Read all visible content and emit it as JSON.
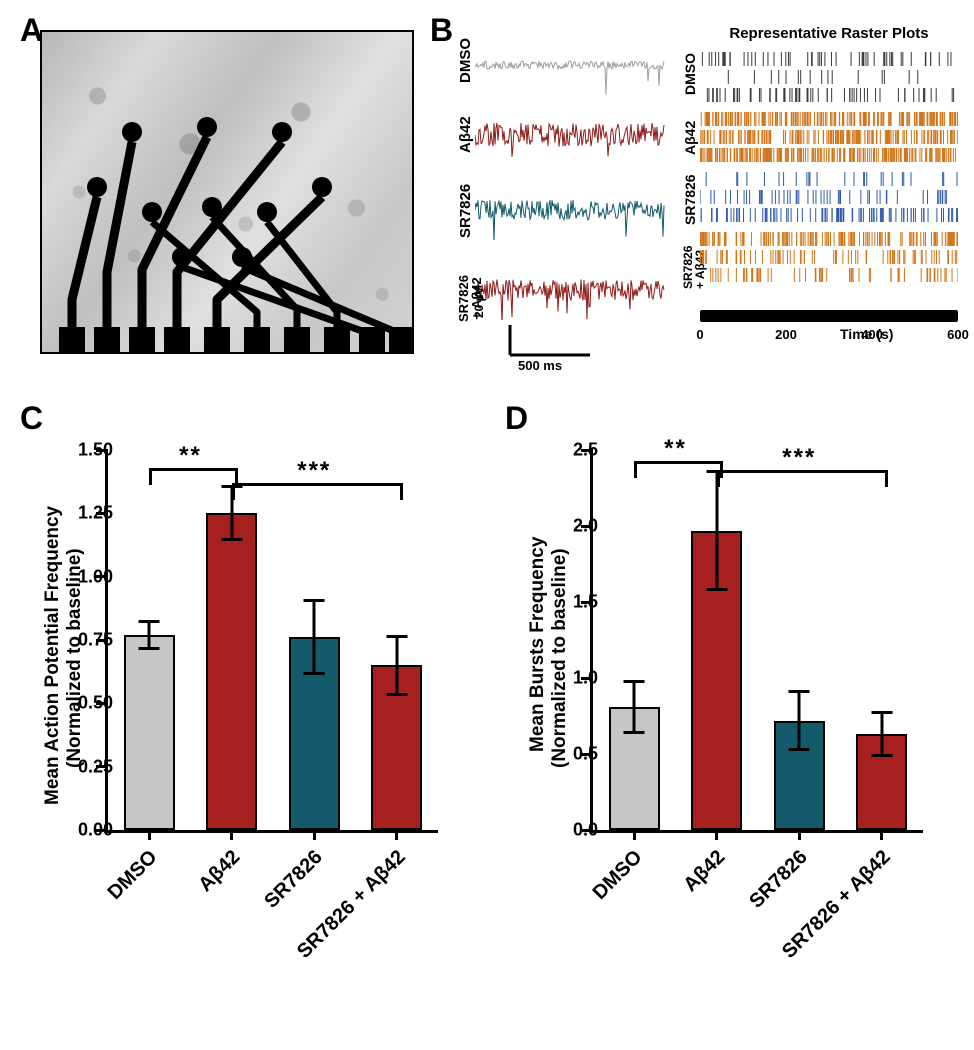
{
  "panelLabels": {
    "A": "A",
    "B": "B",
    "C": "C",
    "D": "D"
  },
  "colors": {
    "dmso": "#c6c6c6",
    "ab42": "#a6201f",
    "sr": "#135b6b",
    "sr_ab": "#a6201f",
    "raster_dmso": "#3a3a3a",
    "raster_ab42": "#d1751b",
    "raster_sr": "#2e5aa8",
    "raster_sr_ab": "#d1751b",
    "trace_dmso": "#9e9e9e",
    "trace_ab42": "#8f1a1a",
    "trace_sr": "#135b6b",
    "trace_sr_ab": "#8f1a1a"
  },
  "conditions": [
    "DMSO",
    "Aβ42",
    "SR7826",
    "SR7826 + Aβ42"
  ],
  "panelB": {
    "title": "Representative Raster Plots",
    "xaxis": {
      "min": 0,
      "max": 600,
      "ticks": [
        0,
        200,
        400,
        600
      ],
      "label": "Time (s)"
    },
    "scale": {
      "y": "20 µV",
      "x": "500 ms"
    },
    "raster_density": {
      "DMSO": [
        0.22,
        0.06,
        0.24
      ],
      "Aβ42": [
        0.78,
        0.7,
        0.82
      ],
      "SR7826": [
        0.1,
        0.2,
        0.36
      ],
      "SR7826 + Aβ42": [
        0.55,
        0.3,
        0.22
      ]
    },
    "trace_noise": {
      "DMSO": 0.18,
      "Aβ42": 0.55,
      "SR7826": 0.45,
      "SR7826 + Aβ42": 0.5
    }
  },
  "panelC": {
    "type": "bar",
    "title": null,
    "ylabel_l1": "Mean Action Potential Frequency",
    "ylabel_l2": "(Normalized to baseline)",
    "ylabel_fontsize": 19,
    "ylim": [
      0,
      1.5
    ],
    "yticks": [
      0.0,
      0.25,
      0.5,
      0.75,
      1.0,
      1.25,
      1.5
    ],
    "ytick_labels": [
      "0.00",
      "0.25",
      "0.50",
      "0.75",
      "1.00",
      "1.25",
      "1.50"
    ],
    "values": [
      0.77,
      1.25,
      0.76,
      0.65
    ],
    "err_up": [
      0.06,
      0.11,
      0.15,
      0.12
    ],
    "err_down": [
      0.06,
      0.11,
      0.15,
      0.12
    ],
    "bar_colors": [
      "#c6c6c6",
      "#a6201f",
      "#135b6b",
      "#a6201f"
    ],
    "bar_width": 0.62,
    "sig": [
      {
        "from": 0,
        "to": 1,
        "label": "**",
        "y": 1.43
      },
      {
        "from": 1,
        "to": 3,
        "label": "***",
        "y": 1.37
      }
    ]
  },
  "panelD": {
    "type": "bar",
    "ylabel_l1": "Mean Bursts Frequency",
    "ylabel_l2": "(Normalized to baseline)",
    "ylabel_fontsize": 19,
    "ylim": [
      0,
      2.5
    ],
    "yticks": [
      0.0,
      0.5,
      1.0,
      1.5,
      2.0,
      2.5
    ],
    "ytick_labels": [
      "0.0",
      "0.5",
      "1.0",
      "1.5",
      "2.0",
      "2.5"
    ],
    "values": [
      0.81,
      1.97,
      0.72,
      0.63
    ],
    "err_up": [
      0.18,
      0.4,
      0.2,
      0.15
    ],
    "err_down": [
      0.18,
      0.4,
      0.2,
      0.15
    ],
    "bar_colors": [
      "#c6c6c6",
      "#a6201f",
      "#135b6b",
      "#a6201f"
    ],
    "bar_width": 0.62,
    "sig": [
      {
        "from": 0,
        "to": 1,
        "label": "**",
        "y": 2.43
      },
      {
        "from": 1,
        "to": 3,
        "label": "***",
        "y": 2.37
      }
    ]
  }
}
